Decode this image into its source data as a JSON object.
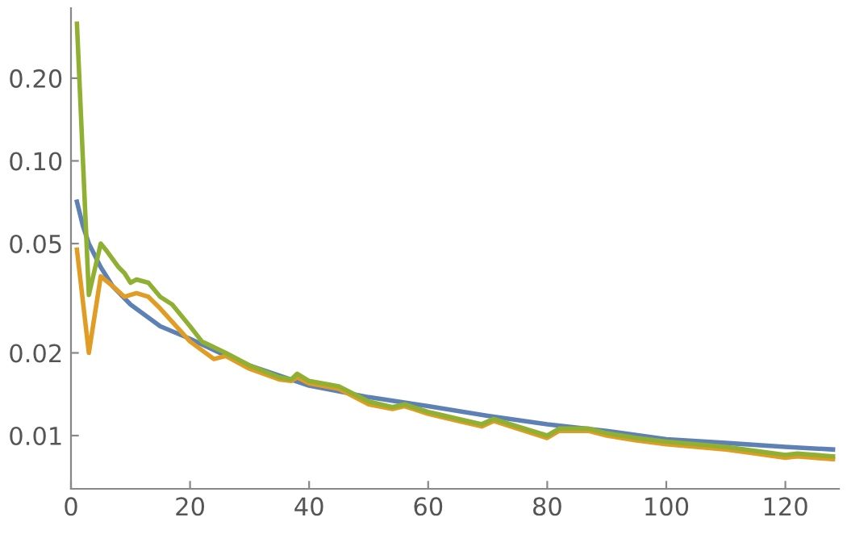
{
  "chart_data": {
    "type": "line",
    "log": "y",
    "grid": false,
    "marker": "none",
    "line_style": "solid",
    "xlim": [
      0,
      129
    ],
    "ylim": [
      0.0064,
      0.36
    ],
    "xticks": [
      0,
      20,
      40,
      60,
      80,
      100,
      120
    ],
    "yticks": [
      {
        "value": 0.01,
        "label": "0.01"
      },
      {
        "value": 0.02,
        "label": "0.02"
      },
      {
        "value": 0.05,
        "label": "0.05"
      },
      {
        "value": 0.1,
        "label": "0.10"
      },
      {
        "value": 0.2,
        "label": "0.20"
      }
    ],
    "series": [
      {
        "color": "#5e81b5",
        "x": [
          1,
          2,
          3,
          5,
          7,
          10,
          15,
          20,
          25,
          30,
          40,
          50,
          60,
          70,
          80,
          90,
          100,
          110,
          120,
          128
        ],
        "values": [
          0.071,
          0.058,
          0.05,
          0.041,
          0.035,
          0.03,
          0.025,
          0.0225,
          0.02,
          0.018,
          0.0152,
          0.0138,
          0.0128,
          0.0118,
          0.011,
          0.0104,
          0.0097,
          0.0094,
          0.0091,
          0.0089
        ]
      },
      {
        "color": "#e19c24",
        "x": [
          1,
          3,
          5,
          7,
          9,
          11,
          13,
          15,
          20,
          24,
          26,
          30,
          35,
          37,
          38,
          40,
          45,
          50,
          54,
          56,
          60,
          65,
          69,
          71,
          75,
          80,
          82,
          87,
          90,
          95,
          100,
          105,
          110,
          115,
          120,
          122,
          128
        ],
        "values": [
          0.0475,
          0.02,
          0.038,
          0.035,
          0.032,
          0.033,
          0.032,
          0.029,
          0.022,
          0.019,
          0.0195,
          0.0175,
          0.016,
          0.0158,
          0.0163,
          0.0155,
          0.0148,
          0.013,
          0.0125,
          0.0128,
          0.012,
          0.0113,
          0.0108,
          0.0113,
          0.0106,
          0.0098,
          0.0104,
          0.0104,
          0.01,
          0.0096,
          0.0093,
          0.0091,
          0.0089,
          0.0086,
          0.0083,
          0.0084,
          0.0082
        ]
      },
      {
        "color": "#8fb032",
        "x": [
          1,
          3,
          5,
          6,
          8,
          9,
          10,
          11,
          13,
          15,
          17,
          20,
          22,
          26,
          30,
          35,
          37,
          38,
          40,
          45,
          50,
          54,
          56,
          60,
          65,
          69,
          71,
          75,
          80,
          82,
          87,
          90,
          95,
          100,
          105,
          110,
          115,
          120,
          122,
          128
        ],
        "values": [
          0.316,
          0.0325,
          0.05,
          0.047,
          0.041,
          0.039,
          0.036,
          0.037,
          0.036,
          0.032,
          0.03,
          0.025,
          0.022,
          0.02,
          0.018,
          0.0163,
          0.016,
          0.0168,
          0.0158,
          0.0151,
          0.0133,
          0.0127,
          0.013,
          0.0122,
          0.0115,
          0.011,
          0.0115,
          0.0108,
          0.01,
          0.0106,
          0.0106,
          0.0102,
          0.0098,
          0.0095,
          0.0093,
          0.0091,
          0.0088,
          0.0085,
          0.0086,
          0.0084
        ]
      }
    ]
  }
}
